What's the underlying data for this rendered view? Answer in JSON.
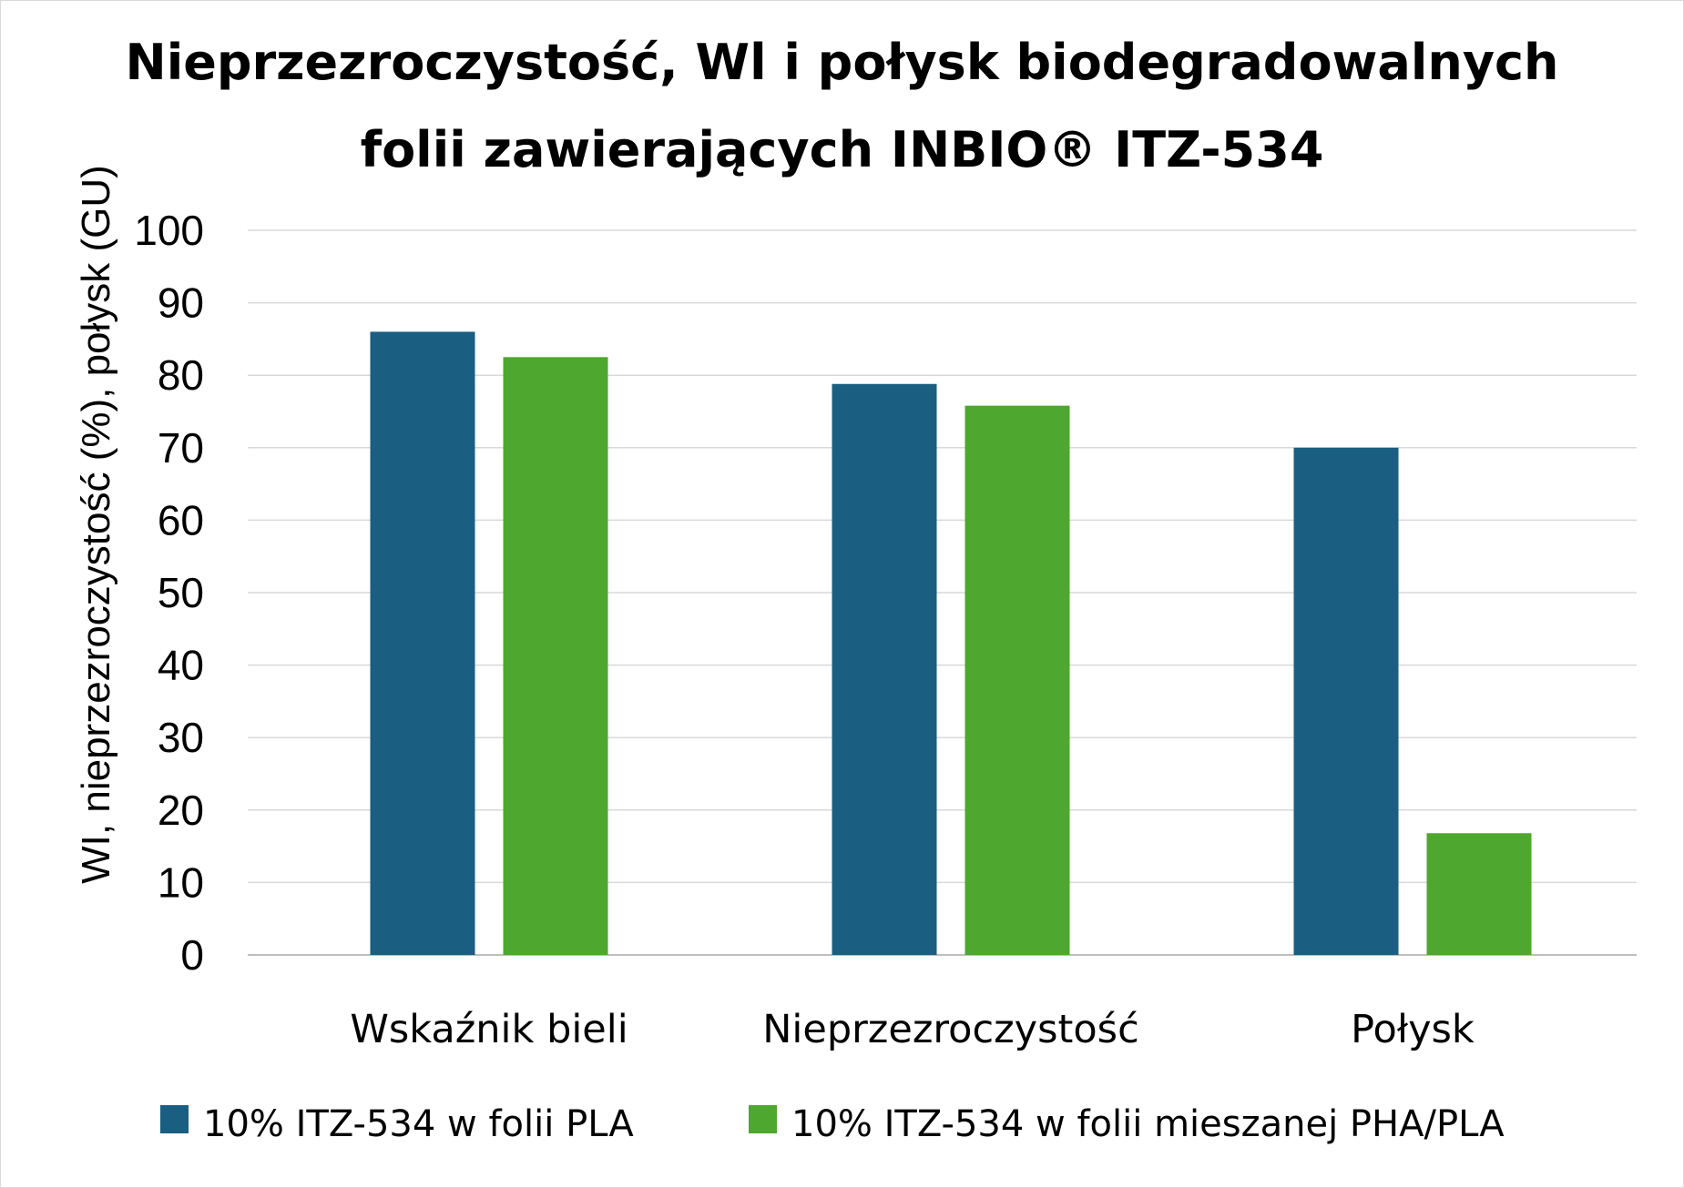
{
  "chart_data": {
    "type": "bar",
    "title_line1": "Nieprzezroczystość, Wl i połysk biodegradowalnych",
    "title_line2": "folii zawierających INBIO® ITZ-534",
    "ylabel": "WI, nieprzezroczystość (%), połysk (GU)",
    "xlabel": "",
    "ylim": [
      0,
      100
    ],
    "yticks": [
      "0",
      "10",
      "20",
      "30",
      "40",
      "50",
      "60",
      "70",
      "80",
      "90",
      "100"
    ],
    "categories": [
      "Wskaźnik bieli",
      "Nieprzezroczystość",
      "Połysk"
    ],
    "series": [
      {
        "name": "10% ITZ-534 w folii PLA",
        "color": "#1a5e82",
        "values": [
          86,
          78.8,
          70
        ]
      },
      {
        "name": "10% ITZ-534 w folii mieszanej PHA/PLA",
        "color": "#4ea72e",
        "values": [
          82.5,
          75.8,
          16.8
        ]
      }
    ],
    "grid": true,
    "legend": "bottom"
  }
}
